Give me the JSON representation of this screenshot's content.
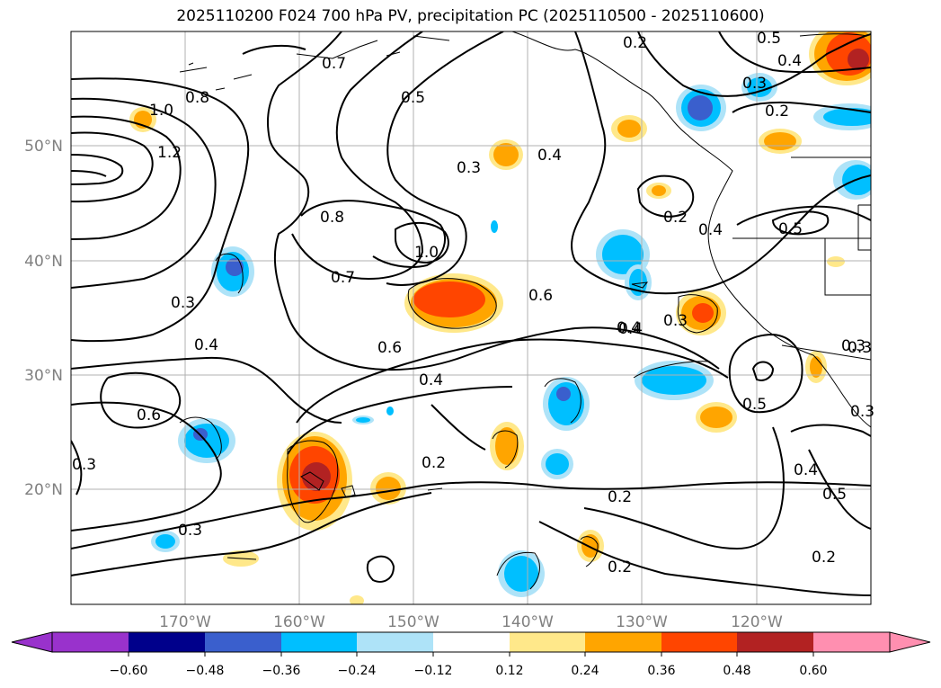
{
  "title": "2025110200 F024 700 hPa PV, precipitation PC (2025110500 - 2025110600)",
  "map": {
    "lon_range": [
      -180,
      -110
    ],
    "lat_range": [
      10,
      60
    ],
    "lon_ticks": [
      "170°W",
      "160°W",
      "150°W",
      "140°W",
      "130°W",
      "120°W"
    ],
    "lat_ticks": [
      "50°N",
      "40°N",
      "30°N",
      "20°N"
    ],
    "gridlines": true
  },
  "contour_labels": [
    "0.5",
    "0.2",
    "0.7",
    "0.4",
    "0.3",
    "0.8",
    "1.0",
    "1.2",
    "0.5",
    "0.3",
    "0.4",
    "0.2",
    "0.8",
    "1.0",
    "0.4",
    "0.5",
    "0.3",
    "0.7",
    "0.6",
    "0.3",
    "0.4",
    "0.6",
    "0.4",
    "0.3",
    "0.4",
    "0.5",
    "0.3",
    "0.6",
    "0.3",
    "0.2",
    "0.2",
    "0.4",
    "0.5",
    "0.3",
    "0.2",
    "0.2",
    "0.3",
    "0.4",
    "0.2"
  ],
  "colorbar": {
    "ticks": [
      "−0.60",
      "−0.48",
      "−0.36",
      "−0.24",
      "−0.12",
      "0.12",
      "0.24",
      "0.36",
      "0.48",
      "0.60"
    ],
    "colors": [
      "#9932cc",
      "#00008b",
      "#3a5fcd",
      "#00bfff",
      "#aee3f8",
      "#ffffff",
      "#ffe88a",
      "#ffa500",
      "#ff4500",
      "#b22222",
      "#ff8fb0"
    ],
    "extend": "both"
  }
}
